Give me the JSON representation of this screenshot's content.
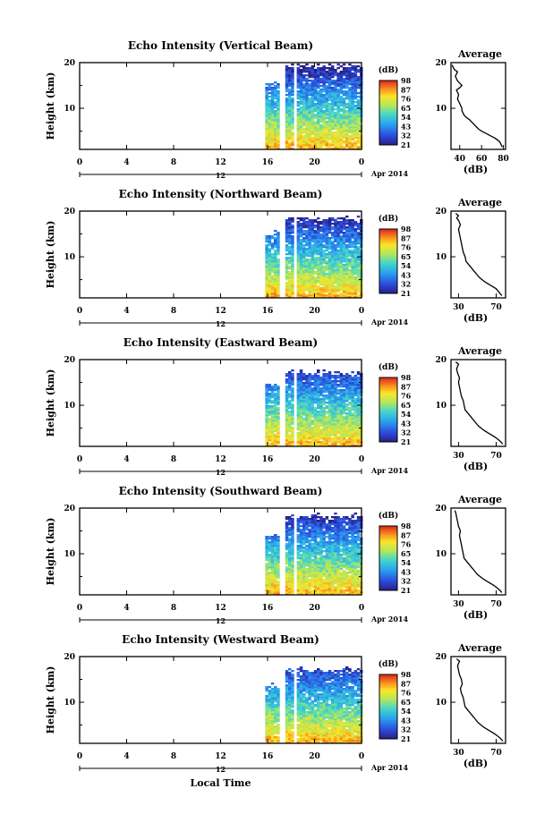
{
  "chart_data": [
    {
      "type": "heatmap",
      "title": "Echo Intensity (Vertical Beam)",
      "ylabel": "Height (km)",
      "x_ticks": [
        "0",
        "4",
        "8",
        "12",
        "16",
        "20",
        "0"
      ],
      "x_range": [
        0,
        24
      ],
      "y_ticks": [
        "20",
        "10"
      ],
      "y_range": [
        1,
        20
      ],
      "date_ticks": [
        "12"
      ],
      "date_label": "Apr 2014",
      "data_start_hour": 15.8,
      "colorbar": {
        "unit": "(dB)",
        "labels": [
          "98",
          "87",
          "76",
          "65",
          "54",
          "43",
          "32",
          "21"
        ],
        "range": [
          21,
          98
        ]
      },
      "average_profile": {
        "title": "Average",
        "xlabel": "(dB)",
        "x_ticks": [
          "40",
          "60",
          "80"
        ],
        "x_range": [
          32,
          82
        ],
        "y_ticks": [
          "20",
          "10"
        ],
        "x": [
          79,
          78,
          77,
          75,
          72,
          68,
          64,
          60,
          57,
          55,
          53,
          51,
          49,
          46,
          44,
          43,
          42,
          42,
          40,
          38,
          39,
          37,
          40,
          42,
          38,
          36,
          38,
          35,
          34,
          33
        ],
        "y": [
          1.5,
          2.0,
          2.5,
          3.0,
          3.5,
          4.0,
          4.5,
          5.0,
          5.5,
          6.0,
          6.5,
          7.0,
          7.5,
          8.0,
          8.5,
          9.0,
          9.5,
          10.0,
          11.0,
          12.0,
          13.0,
          14.0,
          14.5,
          15.0,
          16.0,
          17.0,
          18.0,
          18.5,
          19.0,
          19.5
        ]
      }
    },
    {
      "type": "heatmap",
      "title": "Echo Intensity (Northward Beam)",
      "ylabel": "Height (km)",
      "x_ticks": [
        "0",
        "4",
        "8",
        "12",
        "16",
        "20",
        "0"
      ],
      "x_range": [
        0,
        24
      ],
      "y_ticks": [
        "20",
        "10"
      ],
      "y_range": [
        1,
        20
      ],
      "date_ticks": [
        "12"
      ],
      "date_label": "Apr 2014",
      "data_start_hour": 15.8,
      "colorbar": {
        "unit": "(dB)",
        "labels": [
          "98",
          "87",
          "76",
          "65",
          "54",
          "43",
          "32",
          "21"
        ],
        "range": [
          21,
          98
        ]
      },
      "average_profile": {
        "title": "Average",
        "xlabel": "(dB)",
        "x_ticks": [
          "30",
          "70"
        ],
        "x_range": [
          22,
          80
        ],
        "y_ticks": [
          "20",
          "10"
        ],
        "x": [
          76,
          74,
          72,
          70,
          66,
          62,
          58,
          55,
          52,
          50,
          48,
          46,
          44,
          42,
          40,
          38,
          37,
          35,
          34,
          33,
          32,
          31,
          30,
          32,
          30,
          28,
          30,
          27
        ],
        "y": [
          1.5,
          2.0,
          2.5,
          3.0,
          3.5,
          4.0,
          4.5,
          5.0,
          5.5,
          6.0,
          6.5,
          7.0,
          7.5,
          8.0,
          8.5,
          9.0,
          10.0,
          11.0,
          12.0,
          13.0,
          14.0,
          15.0,
          16.0,
          17.0,
          18.0,
          18.5,
          19.0,
          19.5
        ]
      }
    },
    {
      "type": "heatmap",
      "title": "Echo Intensity (Eastward Beam)",
      "ylabel": "Height (km)",
      "x_ticks": [
        "0",
        "4",
        "8",
        "12",
        "16",
        "20",
        "0"
      ],
      "x_range": [
        0,
        24
      ],
      "y_ticks": [
        "20",
        "10"
      ],
      "y_range": [
        1,
        20
      ],
      "date_ticks": [
        "12"
      ],
      "date_label": "Apr 2014",
      "data_start_hour": 15.8,
      "colorbar": {
        "unit": "(dB)",
        "labels": [
          "98",
          "87",
          "76",
          "65",
          "54",
          "43",
          "32",
          "21"
        ],
        "range": [
          21,
          98
        ]
      },
      "average_profile": {
        "title": "Average",
        "xlabel": "(dB)",
        "x_ticks": [
          "30",
          "70"
        ],
        "x_range": [
          22,
          80
        ],
        "y_ticks": [
          "20",
          "10"
        ],
        "x": [
          77,
          75,
          72,
          69,
          65,
          61,
          57,
          54,
          51,
          49,
          47,
          45,
          43,
          41,
          39,
          37,
          36,
          35,
          33,
          32,
          31,
          30,
          31,
          29,
          28,
          30,
          27
        ],
        "y": [
          1.5,
          2.0,
          2.5,
          3.0,
          3.5,
          4.0,
          4.5,
          5.0,
          5.5,
          6.0,
          6.5,
          7.0,
          7.5,
          8.0,
          8.5,
          9.0,
          10.0,
          11.0,
          12.0,
          13.0,
          14.0,
          15.0,
          16.0,
          17.0,
          18.0,
          19.0,
          19.5
        ]
      }
    },
    {
      "type": "heatmap",
      "title": "Echo Intensity (Southward Beam)",
      "ylabel": "Height (km)",
      "x_ticks": [
        "0",
        "4",
        "8",
        "12",
        "16",
        "20",
        "0"
      ],
      "x_range": [
        0,
        24
      ],
      "y_ticks": [
        "20",
        "10"
      ],
      "y_range": [
        1,
        20
      ],
      "date_ticks": [
        "12"
      ],
      "date_label": "Apr 2014",
      "data_start_hour": 15.8,
      "colorbar": {
        "unit": "(dB)",
        "labels": [
          "98",
          "87",
          "76",
          "65",
          "54",
          "43",
          "32",
          "21"
        ],
        "range": [
          21,
          98
        ]
      },
      "average_profile": {
        "title": "Average",
        "xlabel": "(dB)",
        "x_ticks": [
          "30",
          "70"
        ],
        "x_range": [
          22,
          80
        ],
        "y_ticks": [
          "20",
          "10"
        ],
        "x": [
          76,
          74,
          71,
          68,
          64,
          60,
          56,
          53,
          50,
          48,
          46,
          44,
          42,
          40,
          38,
          36,
          35,
          34,
          33,
          32,
          31,
          32,
          30,
          29,
          28,
          27,
          26
        ],
        "y": [
          1.5,
          2.0,
          2.5,
          3.0,
          3.5,
          4.0,
          4.5,
          5.0,
          5.5,
          6.0,
          6.5,
          7.0,
          7.5,
          8.0,
          8.5,
          9.0,
          10.0,
          11.0,
          12.0,
          13.0,
          14.0,
          15.0,
          16.0,
          17.0,
          18.0,
          19.0,
          19.5
        ]
      }
    },
    {
      "type": "heatmap",
      "title": "Echo Intensity (Westward Beam)",
      "ylabel": "Height (km)",
      "x_ticks": [
        "0",
        "4",
        "8",
        "12",
        "16",
        "20",
        "0"
      ],
      "x_range": [
        0,
        24
      ],
      "y_ticks": [
        "20",
        "10"
      ],
      "y_range": [
        1,
        20
      ],
      "date_ticks": [
        "12"
      ],
      "date_label": "Apr 2014",
      "data_start_hour": 15.8,
      "colorbar": {
        "unit": "(dB)",
        "labels": [
          "98",
          "87",
          "76",
          "65",
          "54",
          "43",
          "32",
          "21"
        ],
        "range": [
          21,
          98
        ]
      },
      "average_profile": {
        "title": "Average",
        "xlabel": "(dB)",
        "x_ticks": [
          "30",
          "70"
        ],
        "x_range": [
          22,
          80
        ],
        "y_ticks": [
          "20",
          "10"
        ],
        "x": [
          77,
          75,
          72,
          69,
          65,
          61,
          57,
          54,
          51,
          49,
          47,
          45,
          43,
          41,
          39,
          37,
          36,
          35,
          33,
          32,
          34,
          33,
          31,
          30,
          29,
          31,
          28
        ],
        "y": [
          1.5,
          2.0,
          2.5,
          3.0,
          3.5,
          4.0,
          4.5,
          5.0,
          5.5,
          6.0,
          6.5,
          7.0,
          7.5,
          8.0,
          8.5,
          9.0,
          10.0,
          11.0,
          12.0,
          13.0,
          14.0,
          15.0,
          16.0,
          17.0,
          18.0,
          19.0,
          19.5
        ]
      }
    }
  ],
  "xlabel": "Local Time"
}
